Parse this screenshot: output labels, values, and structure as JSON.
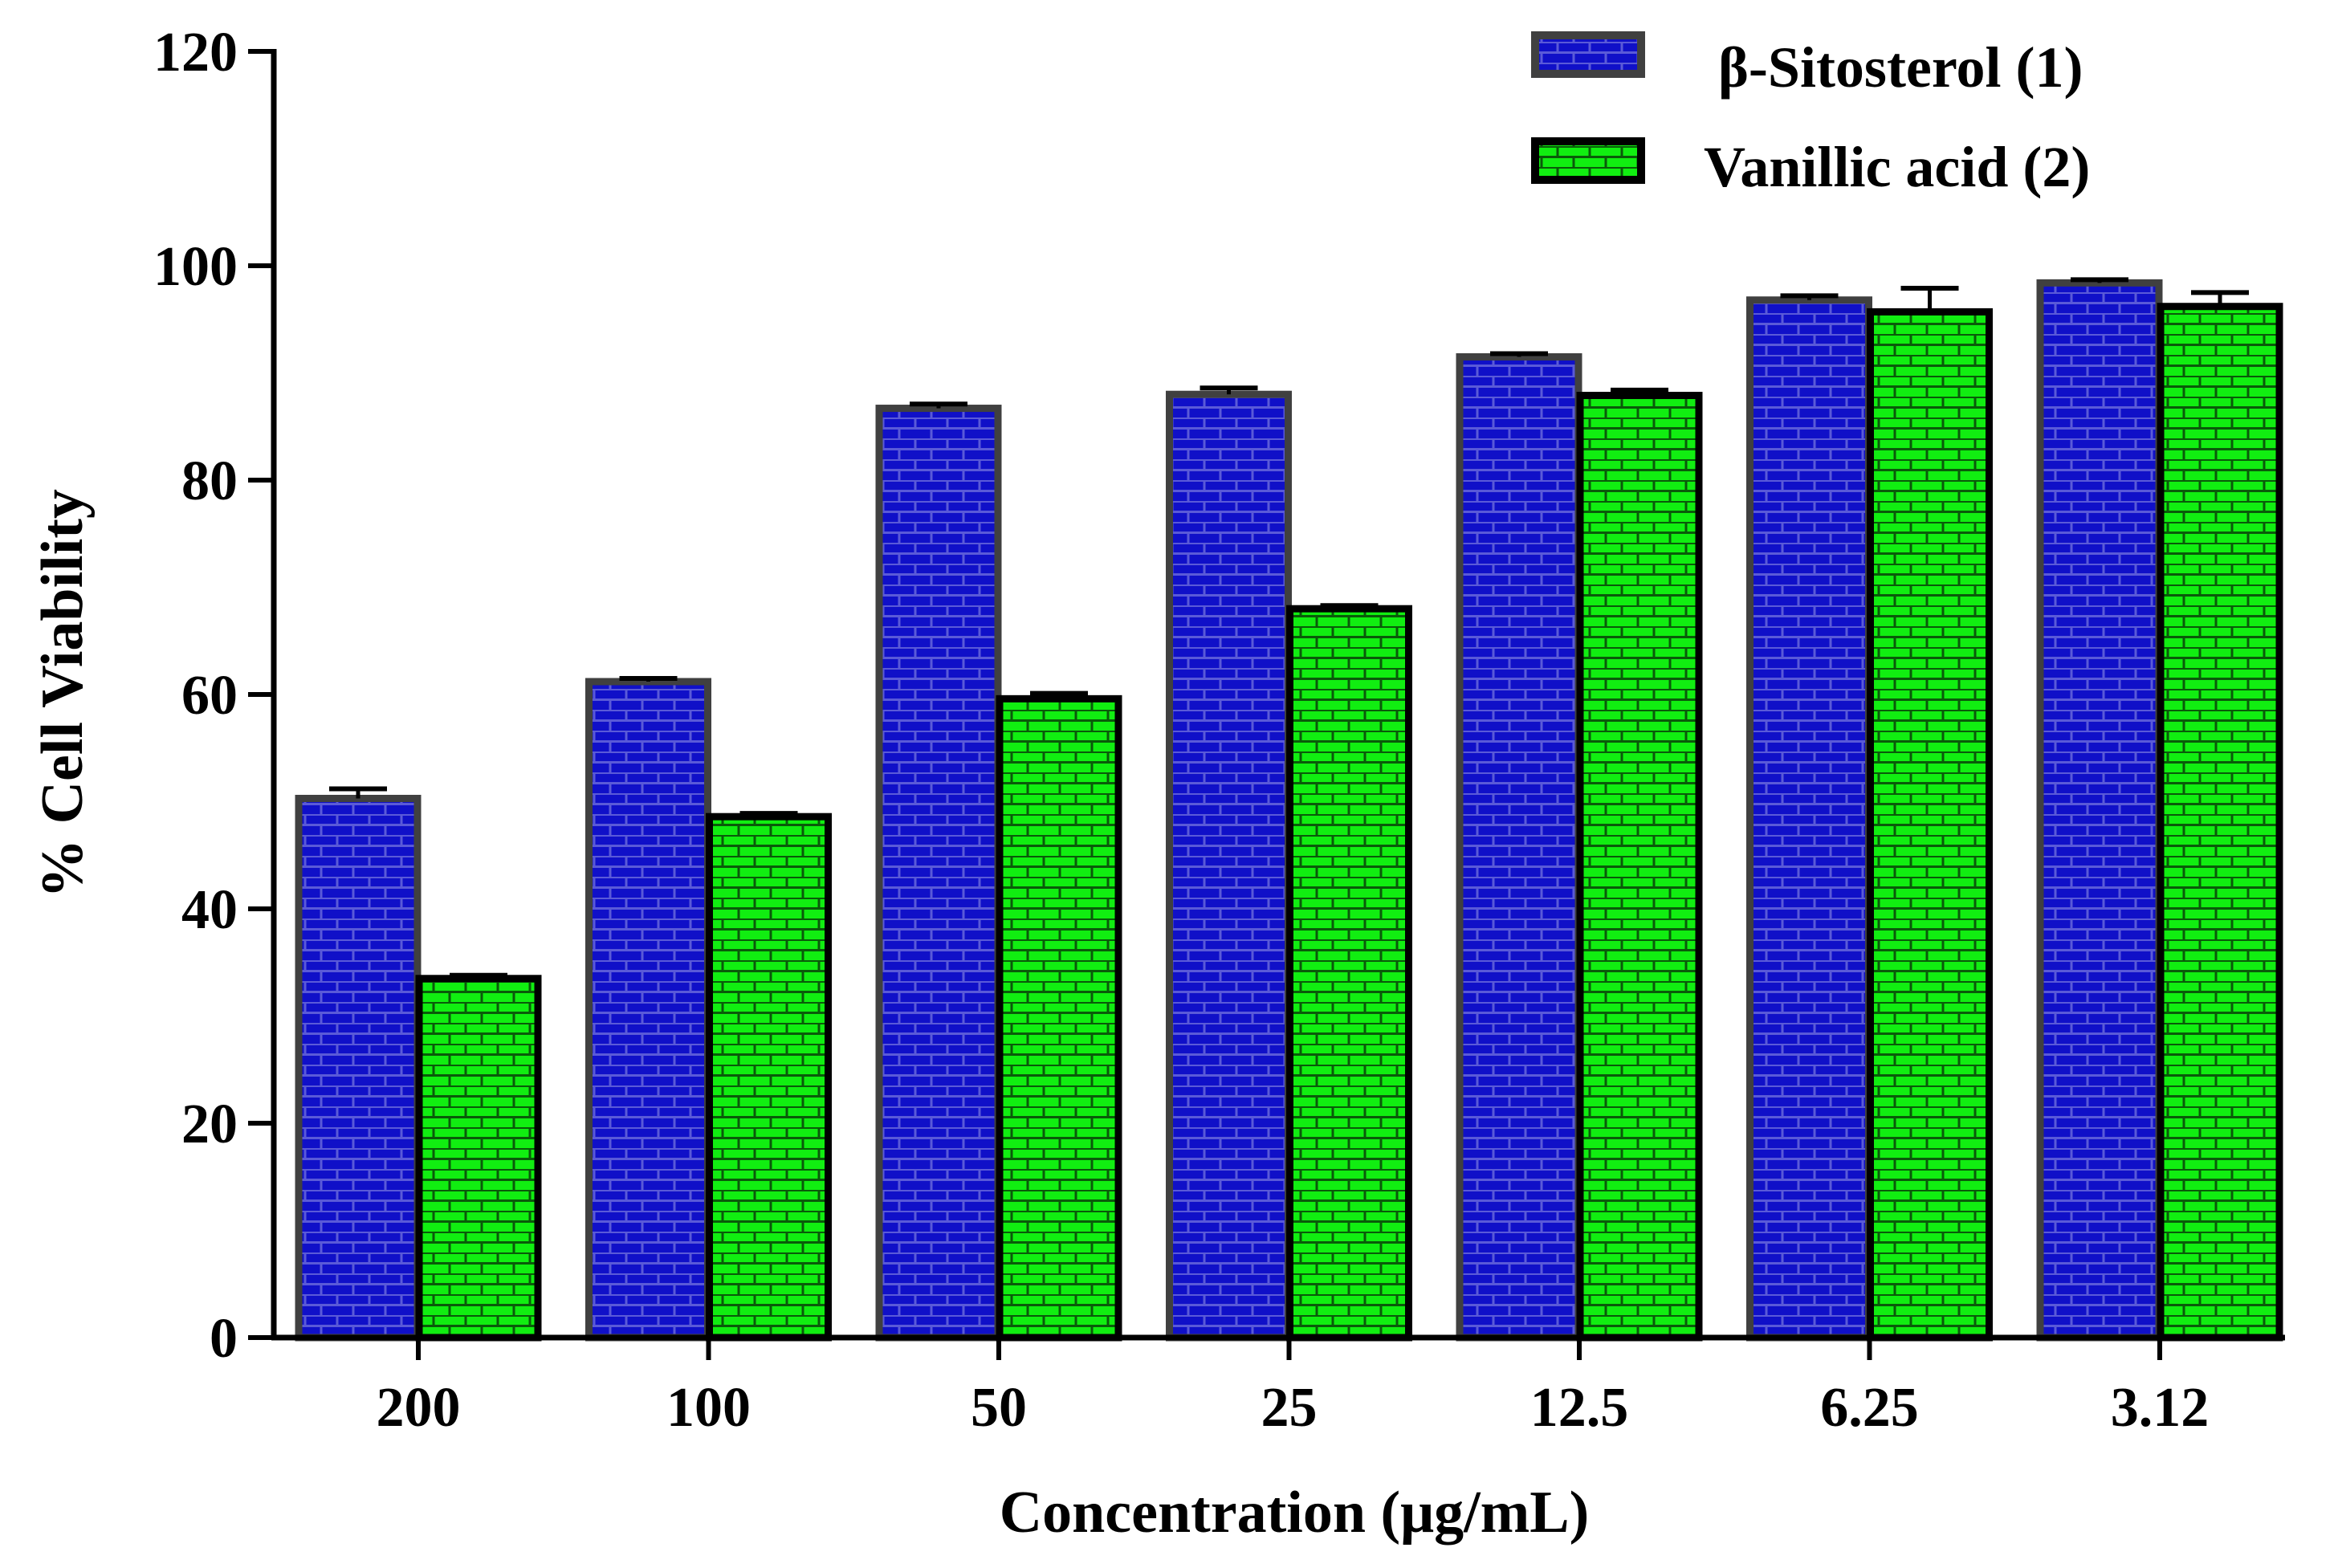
{
  "chart_data": {
    "type": "bar",
    "title": "",
    "xlabel": "Concentration (μg/mL)",
    "ylabel": "% Cell Viability",
    "ylim": [
      0,
      120
    ],
    "yticks": [
      "0",
      "20",
      "40",
      "60",
      "80",
      "100",
      "120"
    ],
    "categories": [
      "200",
      "100",
      "50",
      "25",
      "12.5",
      "6.25",
      "3.12"
    ],
    "legend_position": "top-right",
    "grid": false,
    "series": [
      {
        "name": "β-Sitosterol (1)",
        "values": [
          50.3,
          61.2,
          86.7,
          88.0,
          91.5,
          96.8,
          98.4
        ],
        "errors": [
          0.9,
          0.3,
          0.4,
          0.6,
          0.3,
          0.4,
          0.3
        ],
        "fill_color": "#1010c8",
        "brick_color": "#5a5ad8",
        "border_color": "#404040"
      },
      {
        "name": "Vanillic acid (2)",
        "values": [
          33.5,
          48.6,
          59.6,
          68.0,
          87.9,
          95.7,
          96.2
        ],
        "errors": [
          0.3,
          0.3,
          0.5,
          0.3,
          0.5,
          2.2,
          1.3
        ],
        "fill_color": "#11ee11",
        "brick_color": "#0a5a0a",
        "border_color": "#000000"
      }
    ]
  }
}
